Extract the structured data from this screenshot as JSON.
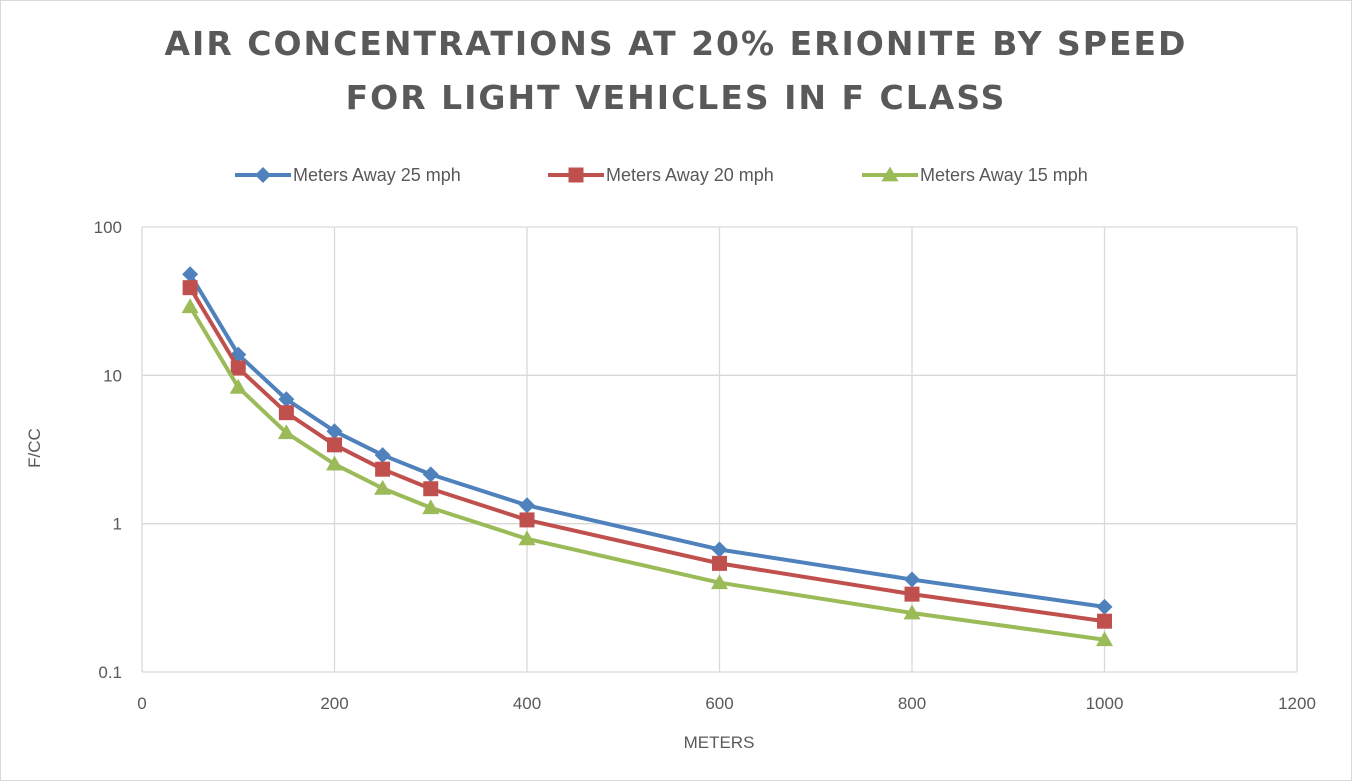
{
  "chart_data": {
    "type": "line",
    "title_lines": [
      "AIR CONCENTRATIONS AT 20% ERIONITE BY SPEED",
      "FOR LIGHT VEHICLES IN F CLASS"
    ],
    "xlabel": "METERS",
    "ylabel": "F/CC",
    "x": [
      50,
      100,
      150,
      200,
      250,
      300,
      400,
      600,
      800,
      1000
    ],
    "xlim": [
      0,
      1200
    ],
    "xticks": [
      "0",
      "200",
      "400",
      "600",
      "800",
      "1000",
      "1200"
    ],
    "ylim": [
      0.1,
      100
    ],
    "yscale": "log",
    "yticks": [
      "0.1",
      "1",
      "10",
      "100"
    ],
    "grid": true,
    "legend_position": "top",
    "series": [
      {
        "name": "Meters Away 25 mph",
        "color": "#4f81bd",
        "marker": "diamond",
        "values": [
          48,
          13.8,
          6.9,
          4.2,
          2.9,
          2.15,
          1.33,
          0.67,
          0.42,
          0.275
        ]
      },
      {
        "name": "Meters Away 20 mph",
        "color": "#c0504d",
        "marker": "square",
        "values": [
          39,
          11.2,
          5.6,
          3.4,
          2.33,
          1.72,
          1.06,
          0.54,
          0.335,
          0.22
        ]
      },
      {
        "name": "Meters Away 15 mph",
        "color": "#9bbb59",
        "marker": "triangle",
        "values": [
          29,
          8.3,
          4.1,
          2.52,
          1.73,
          1.28,
          0.79,
          0.4,
          0.25,
          0.165
        ]
      }
    ]
  }
}
